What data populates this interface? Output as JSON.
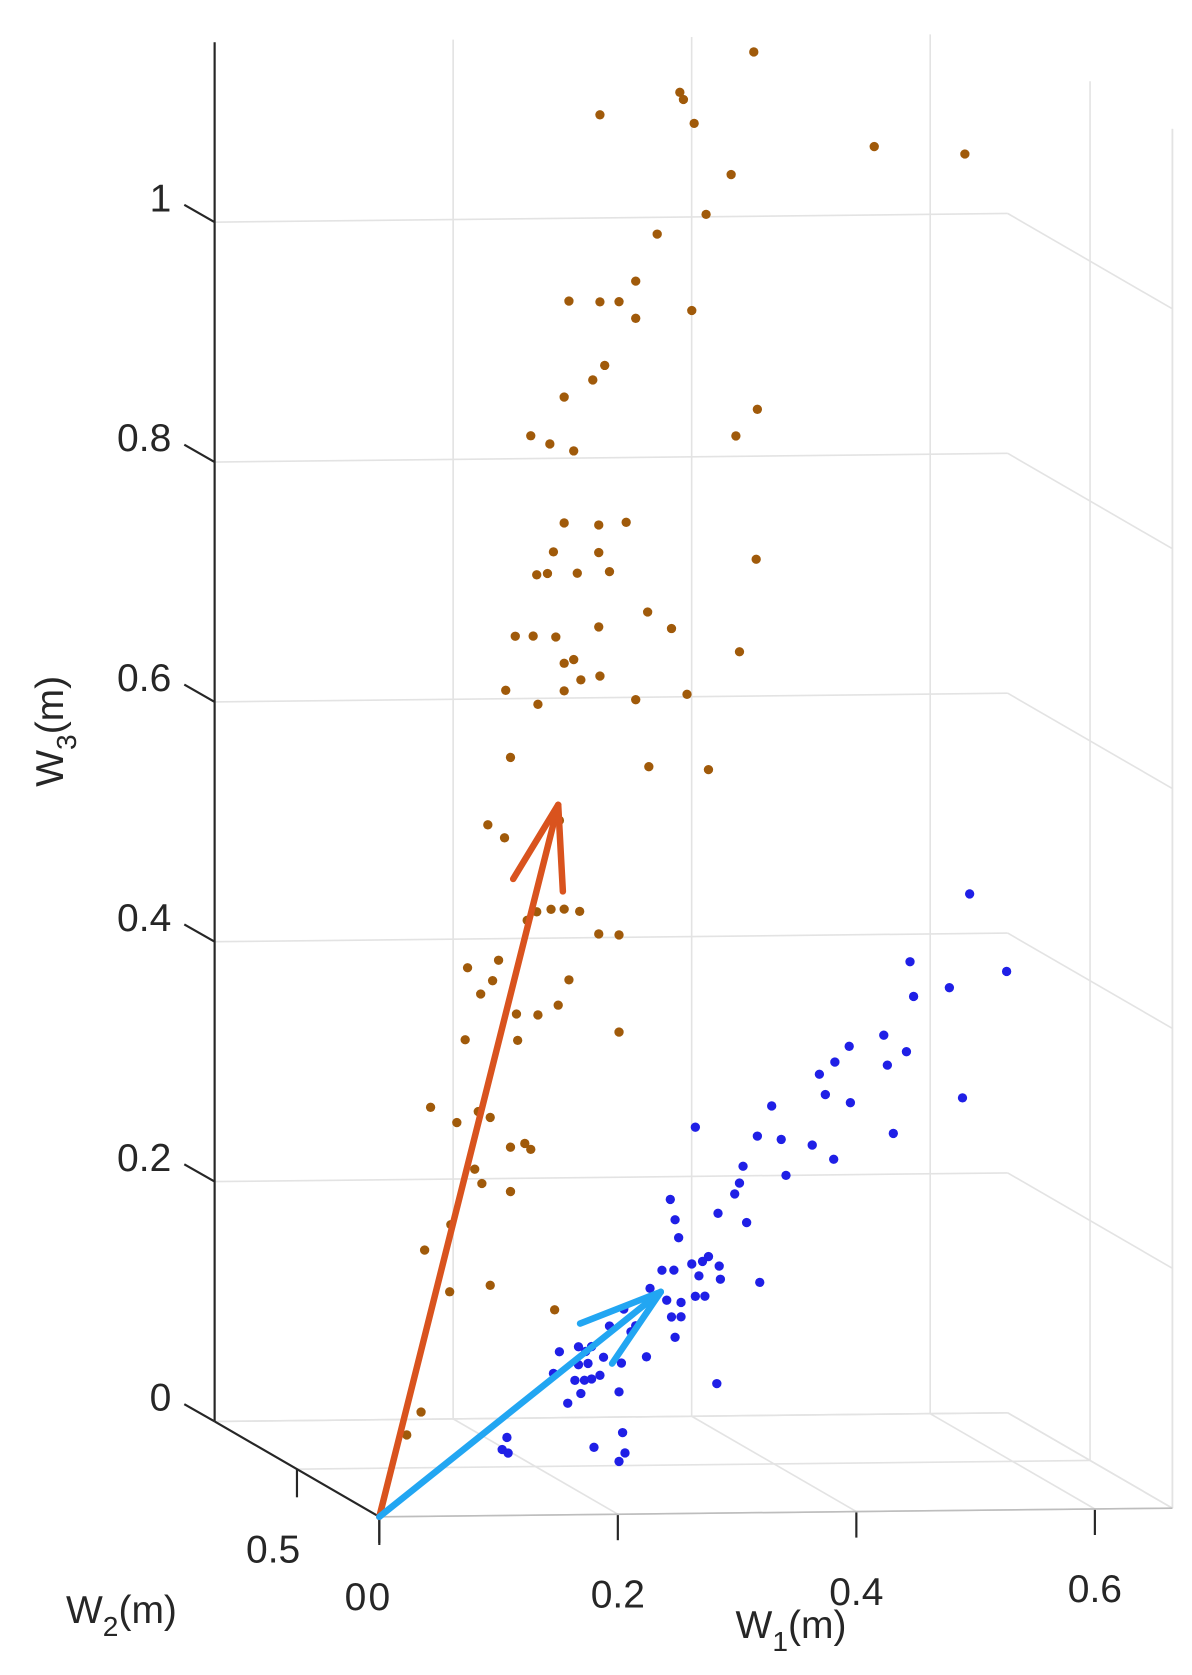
{
  "chart_data": {
    "type": "scatter3d",
    "xlabel": [
      "W",
      "1",
      "(m)"
    ],
    "ylabel": [
      "W",
      "2",
      "(m)"
    ],
    "zlabel": [
      "W",
      "3",
      "(m)"
    ],
    "xlim": [
      0,
      0.665
    ],
    "ylim": [
      0,
      1
    ],
    "zlim": [
      0,
      1.15
    ],
    "xticks": [
      0,
      0.2,
      0.4,
      0.6
    ],
    "yticks": [
      0,
      0.5
    ],
    "zticks": [
      0,
      0.2,
      0.4,
      0.6,
      0.8,
      1
    ],
    "grid": true,
    "series": [
      {
        "color": "#a05a0a",
        "x": [
          0.314,
          0.185,
          0.252,
          0.255,
          0.264,
          0.415,
          0.491,
          0.295,
          0.274,
          0.233,
          0.215,
          0.159,
          0.185,
          0.201,
          0.215,
          0.262,
          0.189,
          0.179,
          0.155,
          0.317,
          0.127,
          0.143,
          0.163,
          0.299,
          0.155,
          0.184,
          0.207,
          0.146,
          0.184,
          0.132,
          0.141,
          0.166,
          0.193,
          0.316,
          0.225,
          0.184,
          0.245,
          0.114,
          0.129,
          0.148,
          0.163,
          0.155,
          0.302,
          0.106,
          0.133,
          0.155,
          0.169,
          0.185,
          0.215,
          0.258,
          0.11,
          0.226,
          0.276,
          0.091,
          0.105,
          0.151,
          0.132,
          0.144,
          0.155,
          0.168,
          0.124,
          0.184,
          0.201,
          0.074,
          0.1,
          0.085,
          0.095,
          0.159,
          0.15,
          0.115,
          0.133,
          0.116,
          0.072,
          0.201,
          0.043,
          0.083,
          0.093,
          0.065,
          0.11,
          0.122,
          0.127,
          0.08,
          0.086,
          0.11,
          0.06,
          0.038,
          0.093,
          0.059,
          0.147,
          0.035,
          0.023
        ],
        "values": [
          1.218,
          1.167,
          1.185,
          1.179,
          1.159,
          1.138,
          1.131,
          1.116,
          1.083,
          1.067,
          1.028,
          1.012,
          1.011,
          1.011,
          0.997,
          1.003,
          0.958,
          0.946,
          0.932,
          0.92,
          0.9,
          0.893,
          0.887,
          0.898,
          0.827,
          0.825,
          0.827,
          0.803,
          0.802,
          0.784,
          0.785,
          0.785,
          0.786,
          0.795,
          0.752,
          0.74,
          0.738,
          0.733,
          0.733,
          0.732,
          0.713,
          0.71,
          0.718,
          0.688,
          0.676,
          0.687,
          0.696,
          0.699,
          0.679,
          0.683,
          0.632,
          0.623,
          0.62,
          0.576,
          0.565,
          0.579,
          0.503,
          0.505,
          0.505,
          0.503,
          0.496,
          0.484,
          0.483,
          0.457,
          0.463,
          0.435,
          0.446,
          0.446,
          0.425,
          0.418,
          0.417,
          0.396,
          0.397,
          0.402,
          0.341,
          0.337,
          0.332,
          0.328,
          0.307,
          0.31,
          0.305,
          0.289,
          0.277,
          0.27,
          0.243,
          0.222,
          0.192,
          0.187,
          0.171,
          0.087,
          0.068
        ]
      },
      {
        "color": "#1f1fe6",
        "x": [
          0.495,
          0.526,
          0.445,
          0.478,
          0.448,
          0.423,
          0.442,
          0.394,
          0.382,
          0.426,
          0.369,
          0.374,
          0.395,
          0.489,
          0.329,
          0.265,
          0.317,
          0.337,
          0.431,
          0.363,
          0.381,
          0.305,
          0.341,
          0.302,
          0.298,
          0.244,
          0.248,
          0.284,
          0.308,
          0.251,
          0.276,
          0.271,
          0.262,
          0.285,
          0.237,
          0.247,
          0.268,
          0.286,
          0.319,
          0.227,
          0.265,
          0.273,
          0.241,
          0.253,
          0.205,
          0.245,
          0.253,
          0.215,
          0.193,
          0.211,
          0.248,
          0.167,
          0.178,
          0.151,
          0.173,
          0.188,
          0.224,
          0.167,
          0.175,
          0.203,
          0.146,
          0.164,
          0.172,
          0.178,
          0.185,
          0.169,
          0.201,
          0.283,
          0.158,
          0.107,
          0.103,
          0.108,
          0.204,
          0.18,
          0.206,
          0.201
        ],
        "values": [
          0.514,
          0.449,
          0.458,
          0.436,
          0.429,
          0.397,
          0.383,
          0.388,
          0.375,
          0.372,
          0.365,
          0.348,
          0.341,
          0.344,
          0.339,
          0.322,
          0.314,
          0.311,
          0.315,
          0.306,
          0.294,
          0.289,
          0.281,
          0.275,
          0.266,
          0.262,
          0.245,
          0.25,
          0.242,
          0.23,
          0.214,
          0.21,
          0.208,
          0.206,
          0.203,
          0.203,
          0.198,
          0.195,
          0.192,
          0.188,
          0.181,
          0.181,
          0.178,
          0.176,
          0.171,
          0.164,
          0.164,
          0.157,
          0.157,
          0.152,
          0.147,
          0.14,
          0.14,
          0.136,
          0.136,
          0.131,
          0.131,
          0.125,
          0.126,
          0.126,
          0.118,
          0.112,
          0.112,
          0.113,
          0.116,
          0.101,
          0.102,
          0.108,
          0.093,
          0.065,
          0.055,
          0.052,
          0.068,
          0.056,
          0.051,
          0.044
        ]
      }
    ],
    "vectors": [
      {
        "color": "#d9531e",
        "x": 0.15,
        "values": 0.592
      },
      {
        "color": "#22a6f2",
        "x": 0.236,
        "values": 0.185
      }
    ]
  }
}
